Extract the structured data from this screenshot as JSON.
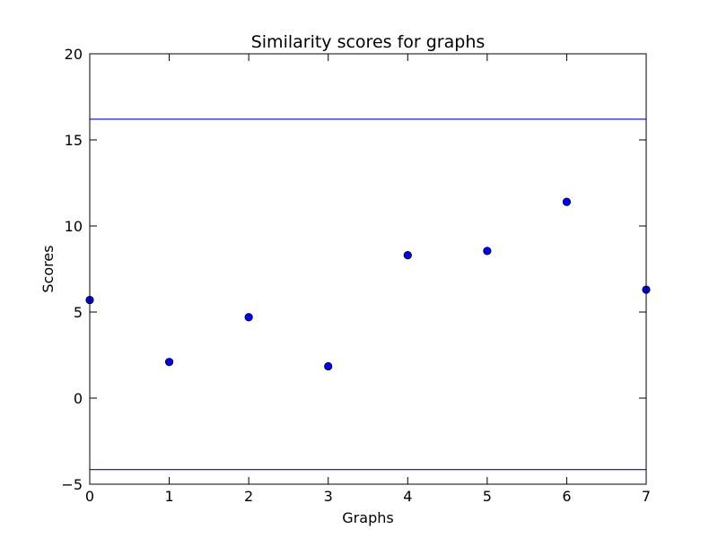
{
  "chart_data": {
    "type": "scatter",
    "title": "Similarity scores for graphs",
    "xlabel": "Graphs",
    "ylabel": "Scores",
    "xlim": [
      0,
      7
    ],
    "ylim": [
      -5,
      20
    ],
    "xticks": [
      0,
      1,
      2,
      3,
      4,
      5,
      6,
      7
    ],
    "yticks": [
      -5,
      0,
      5,
      10,
      15,
      20
    ],
    "grid": false,
    "series": [
      {
        "x": [
          0,
          1,
          2,
          3,
          4,
          5,
          6,
          7
        ],
        "y": [
          5.7,
          2.1,
          4.7,
          1.85,
          8.3,
          8.55,
          11.4,
          6.3
        ],
        "marker": "circle",
        "color": "#0000ff"
      }
    ],
    "reference_lines": [
      {
        "orientation": "horizontal",
        "y": 16.2,
        "color": "#0000ff"
      },
      {
        "orientation": "horizontal",
        "y": -4.15,
        "color": "#0000ff"
      }
    ]
  }
}
